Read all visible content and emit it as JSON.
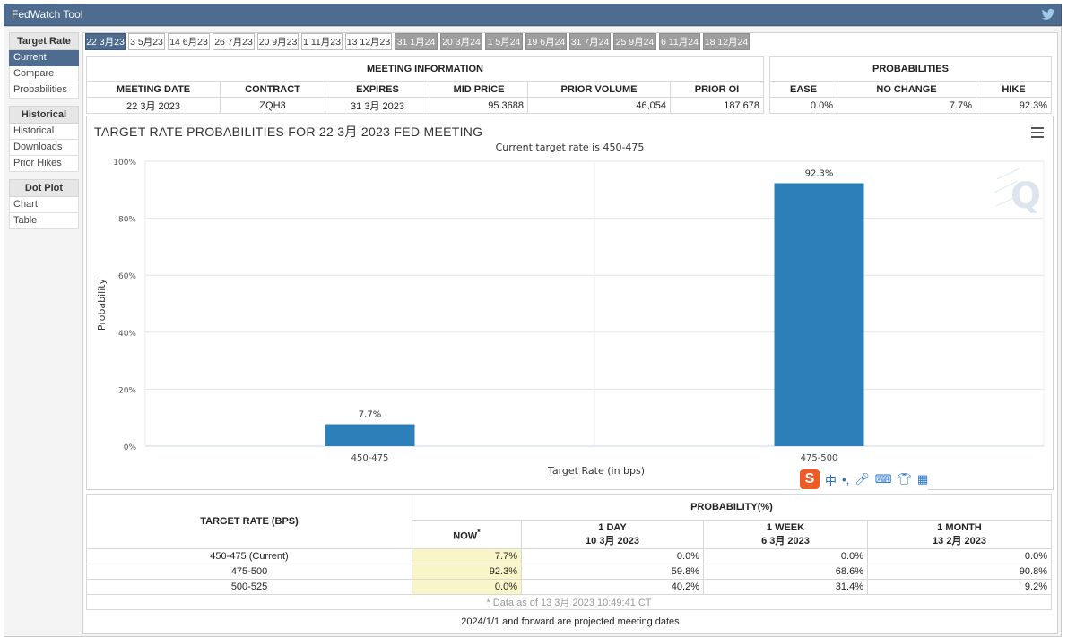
{
  "app": {
    "title": "FedWatch Tool"
  },
  "sidebar": {
    "sections": [
      {
        "heading": "Target Rate",
        "items": [
          "Current",
          "Compare",
          "Probabilities"
        ]
      },
      {
        "heading": "Historical",
        "items": [
          "Historical",
          "Downloads",
          "Prior Hikes"
        ]
      },
      {
        "heading": "Dot Plot",
        "items": [
          "Chart",
          "Table"
        ]
      }
    ]
  },
  "tabs": [
    "22 3月23",
    "3 5月23",
    "14 6月23",
    "26 7月23",
    "20 9月23",
    "1 11月23",
    "13 12月23",
    "31 1月24",
    "20 3月24",
    "1 5月24",
    "19 6月24",
    "31 7月24",
    "25 9月24",
    "6 11月24",
    "18 12月24"
  ],
  "meeting_info": {
    "header": "MEETING INFORMATION",
    "columns": [
      "MEETING DATE",
      "CONTRACT",
      "EXPIRES",
      "MID PRICE",
      "PRIOR VOLUME",
      "PRIOR OI"
    ],
    "row": [
      "22 3月 2023",
      "ZQH3",
      "31 3月 2023",
      "95.3688",
      "46,054",
      "187,678"
    ]
  },
  "probabilities": {
    "header": "PROBABILITIES",
    "columns": [
      "EASE",
      "NO CHANGE",
      "HIKE"
    ],
    "row": [
      "0.0%",
      "7.7%",
      "92.3%"
    ]
  },
  "chart": {
    "title": "TARGET RATE PROBABILITIES FOR 22 3月 2023 FED MEETING",
    "subtitle": "Current target rate is 450-475"
  },
  "chart_data": {
    "type": "bar",
    "title": "TARGET RATE PROBABILITIES FOR 22 3月 2023 FED MEETING",
    "subtitle": "Current target rate is 450-475",
    "categories": [
      "450-475",
      "475-500"
    ],
    "values": [
      7.7,
      92.3
    ],
    "value_labels": [
      "7.7%",
      "92.3%"
    ],
    "xlabel": "Target Rate (in bps)",
    "ylabel": "Probability",
    "ylim": [
      0,
      100
    ],
    "yticks": [
      "0%",
      "20%",
      "40%",
      "60%",
      "80%",
      "100%"
    ],
    "bar_color": "#2c7fb8",
    "grid": true
  },
  "bottom_table": {
    "rate_header": "TARGET RATE (BPS)",
    "prob_header": "PROBABILITY(%)",
    "now_label": "NOW",
    "now_sup": "*",
    "periods": [
      {
        "label": "1 DAY",
        "date": "10 3月 2023"
      },
      {
        "label": "1 WEEK",
        "date": "6 3月 2023"
      },
      {
        "label": "1 MONTH",
        "date": "13 2月 2023"
      }
    ],
    "rows": [
      {
        "rate": "450-475 (Current)",
        "values": [
          "7.7%",
          "0.0%",
          "0.0%",
          "0.0%"
        ]
      },
      {
        "rate": "475-500",
        "values": [
          "92.3%",
          "59.8%",
          "68.6%",
          "90.8%"
        ]
      },
      {
        "rate": "500-525",
        "values": [
          "0.0%",
          "40.2%",
          "31.4%",
          "9.2%"
        ]
      }
    ],
    "note": "* Data as of 13 3月 2023 10:49:41 CT"
  },
  "footnote": "2024/1/1 and forward are projected meeting dates",
  "colors": {
    "accent": "#4e6c8f",
    "bar": "#2c7fb8",
    "now_bg": "#f8f5c8"
  }
}
